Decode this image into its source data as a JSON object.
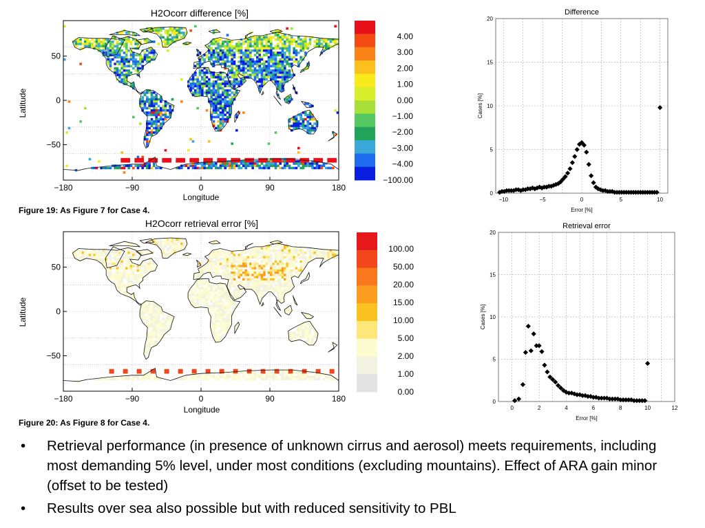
{
  "figures": {
    "fig19": {
      "caption": "Figure 19: As Figure 7 for Case 4.",
      "map": {
        "title": "H2Ocorr difference [%]",
        "ylabel": "Latitude",
        "xlabel": "Longitude",
        "xticks": [
          "−180",
          "−90",
          "0",
          "90",
          "180"
        ],
        "yticks": [
          "50",
          "0",
          "−50"
        ],
        "legend": [
          "4.00",
          "3.00",
          "2.00",
          "1.00",
          "0.00",
          "−1.00",
          "−2.00",
          "−3.00",
          "−4.00",
          "−100.00"
        ],
        "colors": [
          "#e8101a",
          "#f24a12",
          "#fb8417",
          "#fcc01d",
          "#f8ea1c",
          "#d8ee2a",
          "#a8e038",
          "#55c862",
          "#21a45a",
          "#3aa8d8",
          "#1f6cf0",
          "#0a1ee0"
        ]
      }
    },
    "fig20": {
      "caption": "Figure 20: As Figure 8 for Case 4.",
      "map": {
        "title": "H2Ocorr retrieval error [%]",
        "ylabel": "Latitude",
        "xlabel": "Longitude",
        "xticks": [
          "−180",
          "−90",
          "0",
          "90",
          "180"
        ],
        "yticks": [
          "50",
          "0",
          "−50"
        ],
        "legend": [
          "100.00",
          "50.00",
          "20.00",
          "15.00",
          "10.00",
          "5.00",
          "2.00",
          "1.00",
          "0.00"
        ],
        "colors": [
          "#e6181c",
          "#f2461c",
          "#f9781e",
          "#fb9d1f",
          "#fbc11e",
          "#fde67a",
          "#fdfcd0",
          "#f2f2e0",
          "#e3e3e3"
        ]
      }
    }
  },
  "chart_data": [
    {
      "type": "scatter",
      "title": "Difference",
      "xlabel": "Error [%]",
      "ylabel": "Cases [%]",
      "xlim": [
        -11,
        11
      ],
      "ylim": [
        0,
        20
      ],
      "xticks": [
        "−10",
        "−5",
        "0",
        "5",
        "10"
      ],
      "yticks": [
        "0",
        "5",
        "10",
        "15",
        "20"
      ],
      "grid": true,
      "x": [
        -10.5,
        -10.2,
        -9.9,
        -9.6,
        -9.3,
        -9.0,
        -8.7,
        -8.4,
        -8.1,
        -7.8,
        -7.5,
        -7.2,
        -6.9,
        -6.6,
        -6.3,
        -6.0,
        -5.7,
        -5.4,
        -5.1,
        -4.8,
        -4.5,
        -4.2,
        -3.9,
        -3.6,
        -3.3,
        -3.0,
        -2.7,
        -2.4,
        -2.1,
        -1.8,
        -1.5,
        -1.2,
        -0.9,
        -0.6,
        -0.3,
        0.0,
        0.3,
        0.6,
        0.9,
        1.2,
        1.5,
        1.8,
        2.1,
        2.4,
        2.7,
        3.0,
        3.3,
        3.6,
        3.9,
        4.2,
        4.5,
        4.8,
        5.1,
        5.4,
        5.7,
        6.0,
        6.3,
        6.6,
        6.9,
        7.2,
        7.5,
        7.8,
        8.1,
        8.4,
        8.7,
        9.0,
        9.3,
        9.6,
        10.0
      ],
      "y": [
        0.1,
        0.2,
        0.2,
        0.3,
        0.3,
        0.3,
        0.3,
        0.4,
        0.4,
        0.3,
        0.4,
        0.4,
        0.5,
        0.5,
        0.6,
        0.5,
        0.6,
        0.7,
        0.6,
        0.7,
        0.7,
        0.8,
        0.8,
        0.9,
        1.0,
        1.1,
        1.3,
        1.6,
        1.9,
        2.3,
        2.8,
        3.5,
        4.2,
        5.0,
        5.6,
        5.8,
        5.5,
        4.7,
        3.3,
        2.0,
        1.2,
        0.7,
        0.5,
        0.4,
        0.3,
        0.3,
        0.2,
        0.2,
        0.2,
        0.1,
        0.1,
        0.1,
        0.1,
        0.1,
        0.1,
        0.1,
        0.1,
        0.1,
        0.1,
        0.1,
        0.1,
        0.1,
        0.1,
        0.1,
        0.1,
        0.1,
        0.1,
        0.1,
        9.8
      ]
    },
    {
      "type": "scatter",
      "title": "Retrieval error",
      "xlabel": "Error [%]",
      "ylabel": "Cases [%]",
      "xlim": [
        -1,
        12
      ],
      "ylim": [
        0,
        20
      ],
      "xticks": [
        "0",
        "2",
        "4",
        "6",
        "8",
        "10",
        "12"
      ],
      "yticks": [
        "0",
        "5",
        "10",
        "15",
        "20"
      ],
      "grid": true,
      "x": [
        0.2,
        0.5,
        0.8,
        1.0,
        1.2,
        1.4,
        1.6,
        1.8,
        2.0,
        2.2,
        2.4,
        2.6,
        2.8,
        3.0,
        3.2,
        3.4,
        3.6,
        3.8,
        4.0,
        4.2,
        4.4,
        4.6,
        4.8,
        5.0,
        5.2,
        5.4,
        5.6,
        5.8,
        6.0,
        6.2,
        6.4,
        6.6,
        6.8,
        7.0,
        7.2,
        7.4,
        7.6,
        7.8,
        8.0,
        8.2,
        8.4,
        8.6,
        8.8,
        9.0,
        9.2,
        9.4,
        9.6,
        9.8,
        10.0
      ],
      "y": [
        0.1,
        0.3,
        2.0,
        5.8,
        8.9,
        6.0,
        8.0,
        6.6,
        6.6,
        5.9,
        4.3,
        3.5,
        2.9,
        2.6,
        2.3,
        1.9,
        1.6,
        1.3,
        1.1,
        1.0,
        1.0,
        0.9,
        0.8,
        0.8,
        0.7,
        0.7,
        0.6,
        0.6,
        0.5,
        0.5,
        0.4,
        0.4,
        0.4,
        0.4,
        0.3,
        0.3,
        0.3,
        0.3,
        0.2,
        0.2,
        0.2,
        0.2,
        0.2,
        0.1,
        0.1,
        0.1,
        0.1,
        0.1,
        4.5
      ]
    }
  ],
  "bullets": [
    "Retrieval performance (in presence of unknown cirrus and aerosol) meets requirements, including most demanding 5% level, under most conditions (excluding mountains). Effect of ARA gain minor (offset to be tested)",
    "Results over sea also possible but with reduced sensitivity to PBL"
  ]
}
